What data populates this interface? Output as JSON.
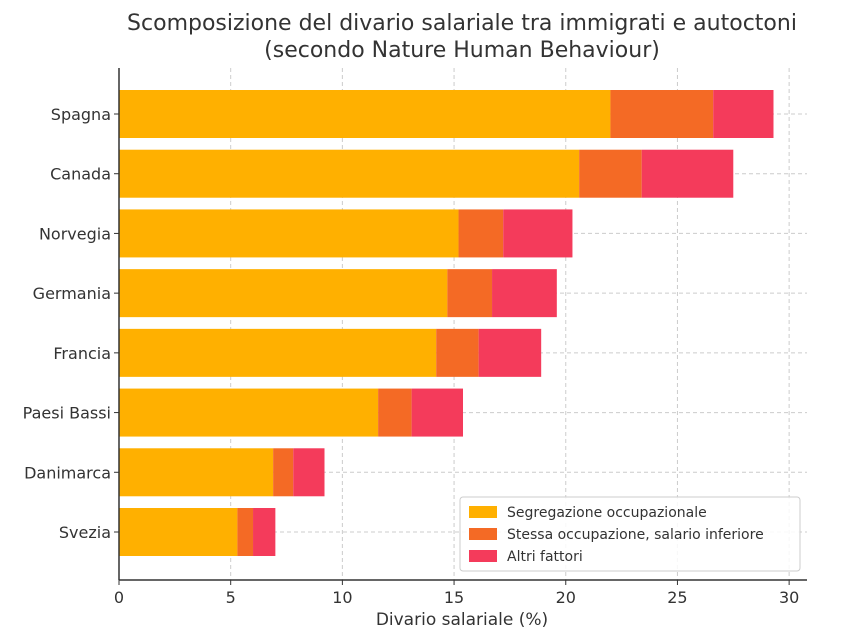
{
  "chart_data": {
    "type": "bar",
    "orientation": "horizontal",
    "stacked": true,
    "title": [
      "Scomposizione del divario salariale tra immigrati e autoctoni",
      "(secondo Nature Human Behaviour)"
    ],
    "xlabel": "Divario salariale (%)",
    "ylabel": "",
    "xlim": [
      0,
      30.8
    ],
    "xticks": [
      0,
      5,
      10,
      15,
      20,
      25,
      30
    ],
    "grid": true,
    "legend_position": "lower-right",
    "categories": [
      "Spagna",
      "Canada",
      "Norvegia",
      "Germania",
      "Francia",
      "Paesi Bassi",
      "Danimarca",
      "Svezia"
    ],
    "series": [
      {
        "name": "Segregazione occupazionale",
        "color": "#FFB000",
        "values": [
          22.0,
          20.6,
          15.2,
          14.7,
          14.2,
          11.6,
          6.9,
          5.3
        ]
      },
      {
        "name": "Stessa occupazione, salario inferiore",
        "color": "#F46A25",
        "values": [
          4.6,
          2.8,
          2.0,
          2.0,
          1.9,
          1.5,
          0.9,
          0.7
        ]
      },
      {
        "name": "Altri fattori",
        "color": "#F43B5B",
        "values": [
          2.7,
          4.1,
          3.1,
          2.9,
          2.8,
          2.3,
          1.4,
          1.0
        ]
      }
    ]
  }
}
